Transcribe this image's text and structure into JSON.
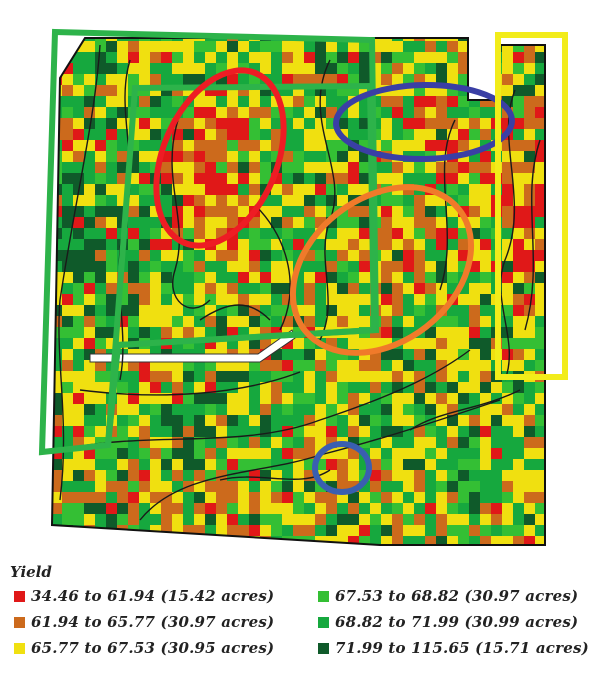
{
  "legend": {
    "title": "Yield",
    "items": [
      {
        "label": "34.46 to 61.94 (15.42 acres)",
        "color": "#e01818"
      },
      {
        "label": "61.94 to 65.77 (30.97 acres)",
        "color": "#cc6a1c"
      },
      {
        "label": "65.77 to 67.53 (30.95 acres)",
        "color": "#f0e010"
      },
      {
        "label": "67.53 to 68.82 (30.97 acres)",
        "color": "#34bf34"
      },
      {
        "label": "68.82 to 71.99 (30.99 acres)",
        "color": "#16a83e"
      },
      {
        "label": "71.99 to 115.65 (15.71 acres)",
        "color": "#0f5a2a"
      }
    ]
  },
  "annotations": [
    {
      "shape": "polygon",
      "color": "#2db34a"
    },
    {
      "shape": "polygon",
      "color": "#2db34a"
    },
    {
      "shape": "ellipse",
      "color": "#ee1c24"
    },
    {
      "shape": "ellipse",
      "color": "#3a3fa5"
    },
    {
      "shape": "ellipse",
      "color": "#f07a2a"
    },
    {
      "shape": "rectangle",
      "color": "#f2ec1a"
    },
    {
      "shape": "ellipse",
      "color": "#3a5fb0"
    }
  ]
}
